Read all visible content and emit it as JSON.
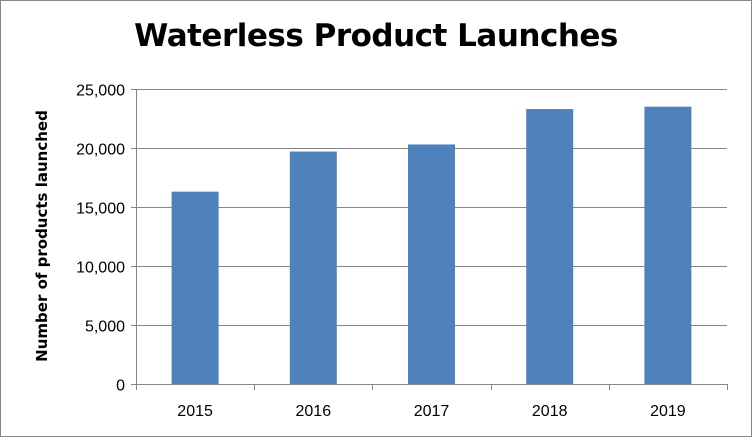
{
  "chart_data": {
    "type": "bar",
    "title": "Waterless Product Launches",
    "xlabel": "",
    "ylabel": "Number of products launched",
    "categories": [
      "2015",
      "2016",
      "2017",
      "2018",
      "2019"
    ],
    "values": [
      16300,
      19700,
      20300,
      23300,
      23500
    ],
    "ylim": [
      0,
      25000
    ],
    "yticks": [
      0,
      5000,
      10000,
      15000,
      20000,
      25000
    ],
    "ytick_labels": [
      "0",
      "5,000",
      "10,000",
      "15,000",
      "20,000",
      "25,000"
    ],
    "grid": true,
    "legend": "none",
    "bar_color": "#4F81BD"
  }
}
